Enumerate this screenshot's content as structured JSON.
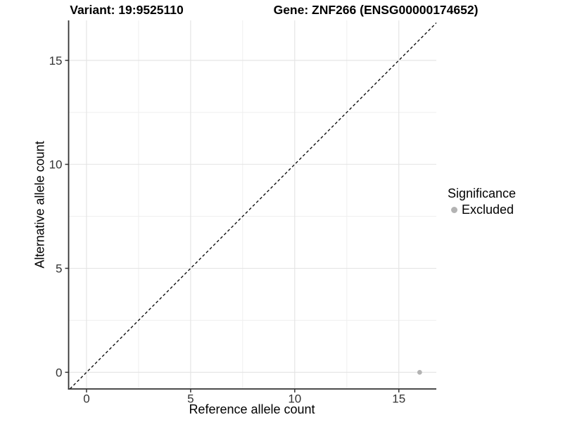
{
  "figure": {
    "titles": {
      "left": "Variant: 19:9525110",
      "right": "Gene: ZNF266 (ENSG00000174652)"
    }
  },
  "legend": {
    "title": "Significance",
    "items": [
      {
        "label": "Excluded",
        "color": "#b3b3b3"
      }
    ]
  },
  "chart_data": {
    "type": "scatter",
    "title": "Variant: 19:9525110 / Gene: ZNF266 (ENSG00000174652)",
    "xlabel": "Reference allele count",
    "ylabel": "Alternative allele count",
    "xlim": [
      -0.86,
      16.8
    ],
    "ylim": [
      -0.8,
      16.92
    ],
    "xticks": [
      0,
      5,
      10,
      15
    ],
    "yticks": [
      0,
      5,
      10,
      15
    ],
    "x_minor_ticks": [
      2.5,
      7.5,
      12.5
    ],
    "y_minor_ticks": [
      2.5,
      7.5,
      12.5
    ],
    "grid": "major+minor",
    "legend_position": "right",
    "reference_line": {
      "kind": "identity y=x",
      "style": "dashed",
      "color": "#111111"
    },
    "series": [
      {
        "name": "Excluded",
        "color": "#b3b3b3",
        "points": [
          {
            "x": 16,
            "y": 0
          }
        ]
      }
    ],
    "colors": {
      "grid_major": "#e3e3e3",
      "grid_minor": "#efefef",
      "axis_line": "#333333",
      "tick_label": "#333333",
      "title_text": "#000000"
    }
  }
}
